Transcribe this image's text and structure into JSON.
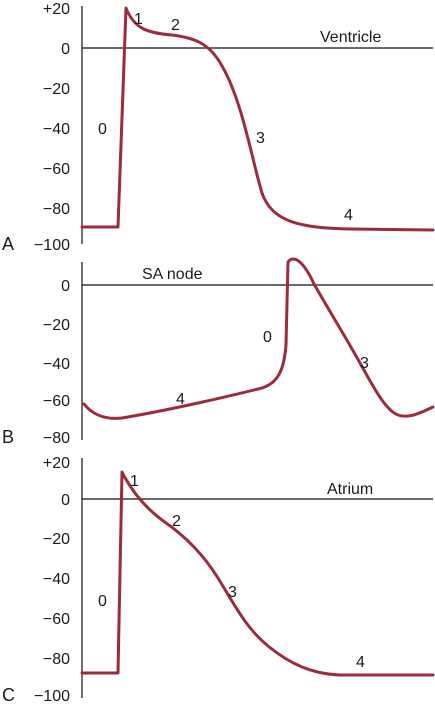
{
  "figure": {
    "curve_color": "#9b2c3c",
    "panels": [
      {
        "letter": "A",
        "title": "Ventricle",
        "y_ticks": [
          "+20",
          "0",
          "−20",
          "−40",
          "−60",
          "−80",
          "−100"
        ],
        "phases": [
          "0",
          "1",
          "2",
          "3",
          "4"
        ]
      },
      {
        "letter": "B",
        "title": "SA node",
        "y_ticks": [
          "0",
          "−20",
          "−40",
          "−60",
          "−80"
        ],
        "phases": [
          "0",
          "3",
          "4"
        ]
      },
      {
        "letter": "C",
        "title": "Atrium",
        "y_ticks": [
          "+20",
          "0",
          "−20",
          "−40",
          "−60",
          "−80",
          "−100"
        ],
        "phases": [
          "0",
          "1",
          "2",
          "3",
          "4"
        ]
      }
    ]
  }
}
